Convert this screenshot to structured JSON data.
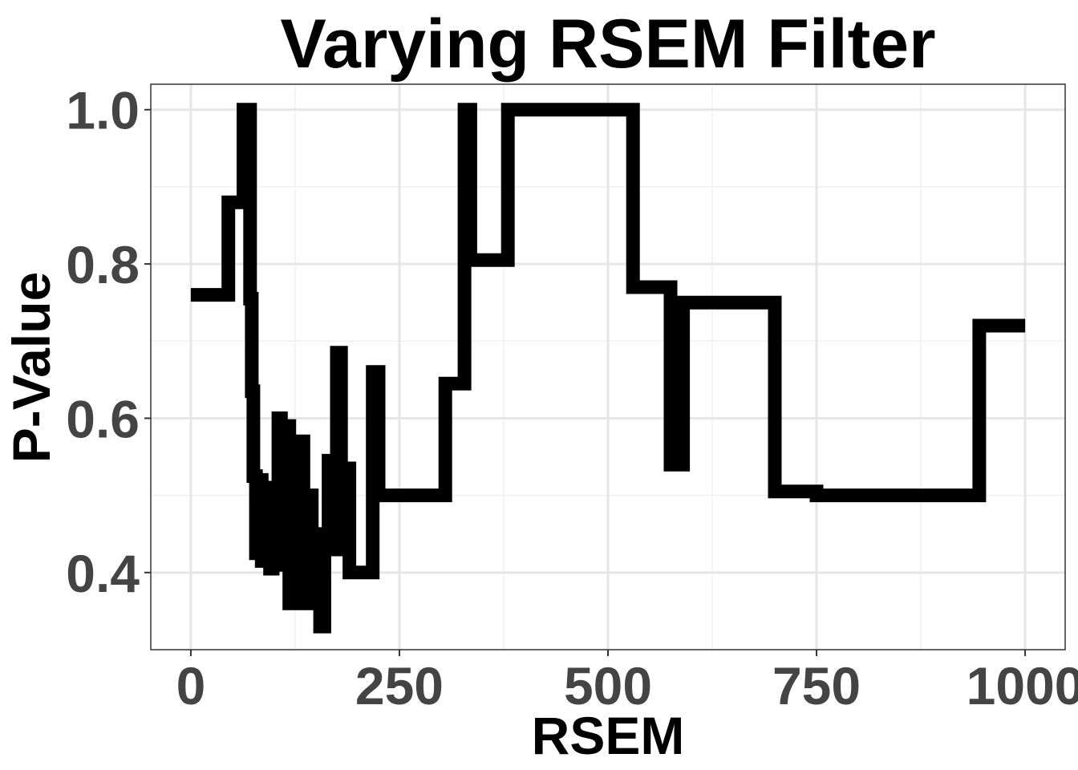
{
  "chart_data": {
    "type": "line",
    "title": "Varying RSEM Filter",
    "xlabel": "RSEM",
    "ylabel": "P-Value",
    "xlim": [
      -48,
      1048
    ],
    "ylim": [
      0.3,
      1.033
    ],
    "x_ticks": [
      0,
      250,
      500,
      750,
      1000
    ],
    "x_tick_labels": [
      "0",
      "250",
      "500",
      "750",
      "1000"
    ],
    "y_ticks": [
      0.4,
      0.6,
      0.8,
      1.0
    ],
    "y_tick_labels": [
      "0.4",
      "0.6",
      "0.8",
      "1.0"
    ],
    "grid": true,
    "step": true,
    "line_color": "#000000",
    "series": [
      {
        "x": [
          0,
          45,
          63,
          66,
          69,
          71,
          73,
          75,
          78,
          82,
          85,
          87,
          90,
          92,
          95,
          98,
          101,
          105,
          108,
          112,
          115,
          118,
          121,
          125,
          128,
          132,
          135,
          140,
          145,
          150,
          155,
          160,
          165,
          170,
          175,
          180,
          185,
          190,
          200,
          210,
          218,
          225,
          250,
          300,
          305,
          320,
          328,
          335,
          350,
          375,
          380,
          500,
          530,
          550,
          575,
          578,
          590,
          600,
          700,
          750,
          800,
          900,
          945,
          950,
          1000
        ],
        "y": [
          0.76,
          0.88,
          1.0,
          0.88,
          1.0,
          0.755,
          0.635,
          0.525,
          0.425,
          0.52,
          0.415,
          0.5,
          0.42,
          0.51,
          0.405,
          0.5,
          0.41,
          0.6,
          0.5,
          0.41,
          0.59,
          0.36,
          0.5,
          0.36,
          0.45,
          0.57,
          0.36,
          0.5,
          0.45,
          0.45,
          0.33,
          0.45,
          0.545,
          0.43,
          0.685,
          0.535,
          0.535,
          0.4,
          0.4,
          0.4,
          0.66,
          0.5,
          0.5,
          0.5,
          0.645,
          0.645,
          1.0,
          0.805,
          0.805,
          0.805,
          1.0,
          1.0,
          0.77,
          0.77,
          0.54,
          0.54,
          0.75,
          0.75,
          0.505,
          0.5,
          0.5,
          0.5,
          0.72,
          0.72,
          0.72
        ]
      }
    ]
  }
}
